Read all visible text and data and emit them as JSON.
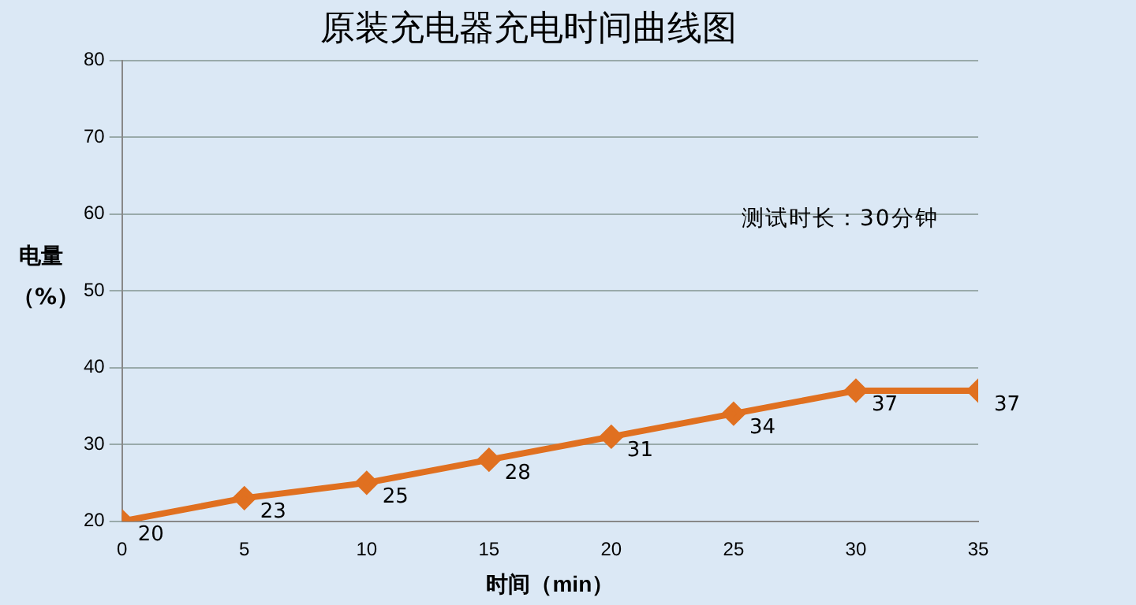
{
  "chart_data": {
    "type": "line",
    "title": "原装充电器充电时间曲线图",
    "xlabel": "时间（min）",
    "ylabel": "电量（%）",
    "annotations": [
      "测试时长：30分钟"
    ],
    "x": [
      0,
      5,
      10,
      15,
      20,
      25,
      30,
      35
    ],
    "series": [
      {
        "values": [
          20,
          23,
          25,
          28,
          31,
          34,
          37,
          37
        ],
        "color": "#e07020"
      }
    ],
    "xlim": [
      0,
      35
    ],
    "xticks": [
      0,
      5,
      10,
      15,
      20,
      25,
      30,
      35
    ],
    "ylim": [
      20,
      80
    ],
    "yticks": [
      20,
      30,
      40,
      50,
      60,
      70,
      80
    ],
    "grid": "y",
    "marker": "diamond",
    "data_labels": true,
    "legend": false
  }
}
